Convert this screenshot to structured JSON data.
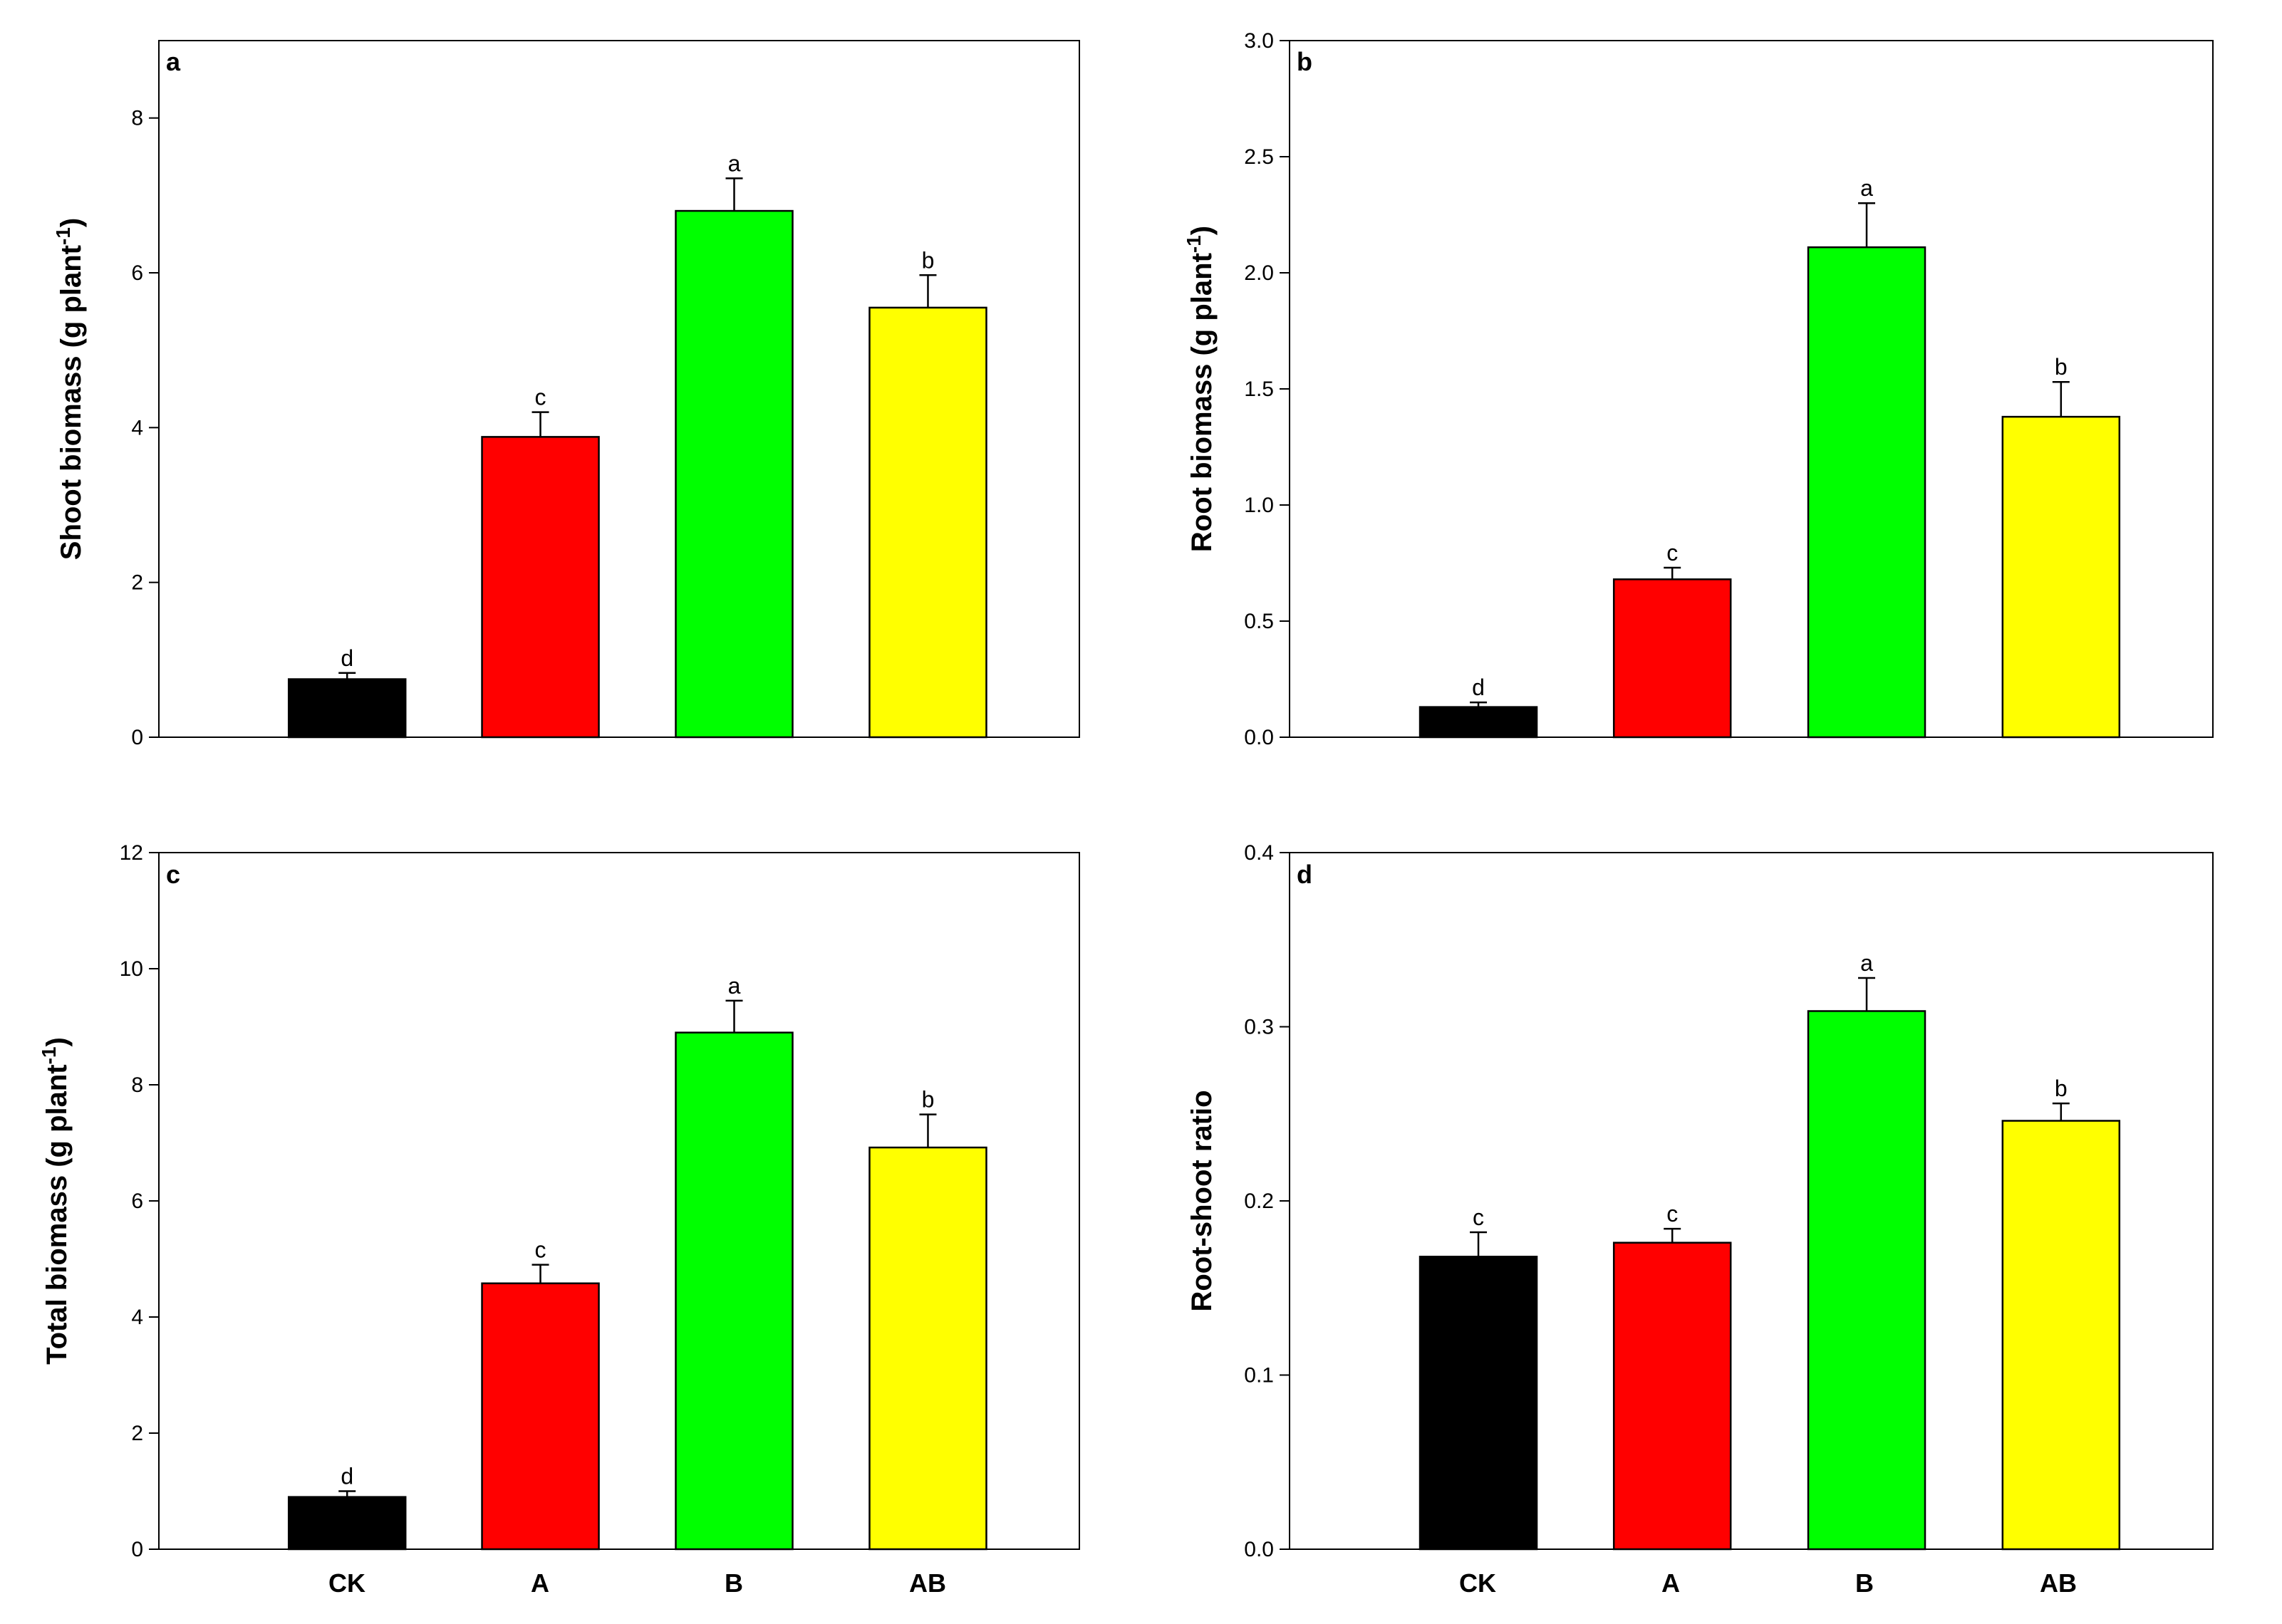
{
  "chart_data": [
    {
      "type": "bar",
      "panel_label": "a",
      "categories": [
        "CK",
        "A",
        "B",
        "AB"
      ],
      "values": [
        0.75,
        3.88,
        6.8,
        5.55
      ],
      "errors": [
        0.08,
        0.32,
        0.42,
        0.42
      ],
      "significance": [
        "d",
        "c",
        "a",
        "b"
      ],
      "colors": [
        "#000000",
        "#ff0000",
        "#00ff00",
        "#ffff00"
      ],
      "ylabel": "Shoot biomass (g plant",
      "ylabel_sup": "-1",
      "ylabel_close": ")",
      "ylim": [
        0,
        9
      ],
      "yticks": [
        0,
        2,
        4,
        6,
        8
      ],
      "ytick_labels": [
        "0",
        "2",
        "4",
        "6",
        "8"
      ]
    },
    {
      "type": "bar",
      "panel_label": "b",
      "categories": [
        "CK",
        "A",
        "B",
        "AB"
      ],
      "values": [
        0.13,
        0.68,
        2.11,
        1.38
      ],
      "errors": [
        0.02,
        0.05,
        0.19,
        0.15
      ],
      "significance": [
        "d",
        "c",
        "a",
        "b"
      ],
      "colors": [
        "#000000",
        "#ff0000",
        "#00ff00",
        "#ffff00"
      ],
      "ylabel": "Root biomass (g plant",
      "ylabel_sup": "-1",
      "ylabel_close": ")",
      "ylim": [
        0,
        3.0
      ],
      "yticks": [
        0,
        0.5,
        1.0,
        1.5,
        2.0,
        2.5,
        3.0
      ],
      "ytick_labels": [
        "0.0",
        "0.5",
        "1.0",
        "1.5",
        "2.0",
        "2.5",
        "3.0"
      ]
    },
    {
      "type": "bar",
      "panel_label": "c",
      "categories": [
        "CK",
        "A",
        "B",
        "AB"
      ],
      "values": [
        0.9,
        4.58,
        8.9,
        6.92
      ],
      "errors": [
        0.1,
        0.32,
        0.55,
        0.57
      ],
      "significance": [
        "d",
        "c",
        "a",
        "b"
      ],
      "colors": [
        "#000000",
        "#ff0000",
        "#00ff00",
        "#ffff00"
      ],
      "ylabel": "Total biomass (g plant",
      "ylabel_sup": "-1",
      "ylabel_close": ")",
      "ylim": [
        0,
        12
      ],
      "yticks": [
        0,
        2,
        4,
        6,
        8,
        10,
        12
      ],
      "ytick_labels": [
        "0",
        "2",
        "4",
        "6",
        "8",
        "10",
        "12"
      ]
    },
    {
      "type": "bar",
      "panel_label": "d",
      "categories": [
        "CK",
        "A",
        "B",
        "AB"
      ],
      "values": [
        0.168,
        0.176,
        0.309,
        0.246
      ],
      "errors": [
        0.014,
        0.008,
        0.019,
        0.01
      ],
      "significance": [
        "c",
        "c",
        "a",
        "b"
      ],
      "colors": [
        "#000000",
        "#ff0000",
        "#00ff00",
        "#ffff00"
      ],
      "ylabel": "Root-shoot ratio",
      "ylabel_sup": "",
      "ylabel_close": "",
      "ylim": [
        0,
        0.4
      ],
      "yticks": [
        0,
        0.1,
        0.2,
        0.3,
        0.4
      ],
      "ytick_labels": [
        "0.0",
        "0.1",
        "0.2",
        "0.3",
        "0.4"
      ]
    }
  ]
}
